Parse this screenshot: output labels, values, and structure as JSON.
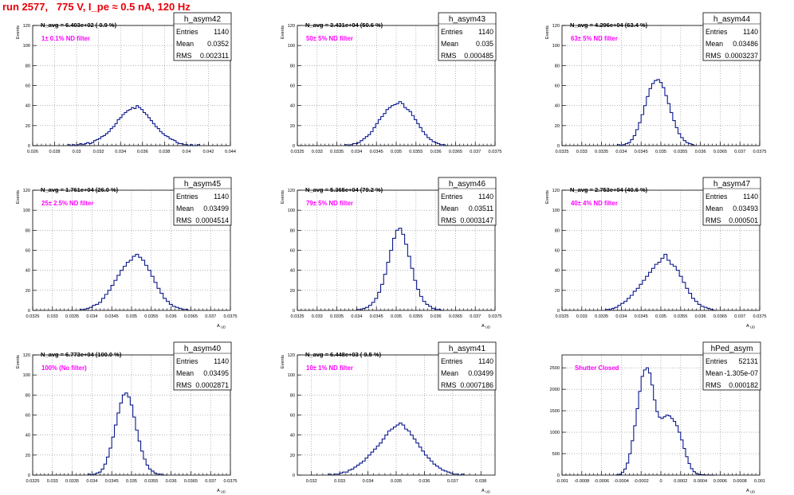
{
  "page_title": "run 2577,   775 V, I_pe ≈ 0.5 nA, 120 Hz",
  "colors": {
    "histogram": "#0b1a8c",
    "note": "#ff00ff",
    "title": "#e8000b",
    "grid": "#888888",
    "frame": "#000000"
  },
  "chart_data": [
    {
      "type": "histogram",
      "name": "h_asym42",
      "navg": "N_avg = 6.403e+02 ( 0.9 %)",
      "note": "1± 0.1% ND filter",
      "stats": {
        "entries_label": "Entries",
        "mean_label": "Mean",
        "rms_label": "RMS",
        "entries": "1140",
        "mean": "0.0352",
        "rms": "0.002311"
      },
      "ylabel": "Events",
      "xlabel": "",
      "xlim": [
        0.026,
        0.044
      ],
      "ylim": [
        0,
        120
      ],
      "xticks": [
        0.026,
        0.028,
        0.03,
        0.032,
        0.034,
        0.036,
        0.038,
        0.04,
        0.042,
        0.044
      ],
      "xtick_labels": [
        "0.026",
        "0.028",
        "0.03",
        "0.032",
        "0.034",
        "0.036",
        "0.038",
        "0.04",
        "0.042",
        "0.044"
      ],
      "yticks": [
        0,
        20,
        40,
        60,
        80,
        100,
        120
      ],
      "xbins": [
        0.0292,
        0.0412
      ],
      "counts": [
        1,
        0,
        1,
        0,
        1,
        2,
        1,
        2,
        3,
        2,
        3,
        5,
        6,
        7,
        9,
        10,
        12,
        14,
        17,
        19,
        22,
        26,
        28,
        31,
        33,
        35,
        36,
        38,
        37,
        40,
        38,
        36,
        33,
        31,
        28,
        25,
        22,
        19,
        17,
        14,
        12,
        10,
        9,
        7,
        6,
        5,
        3,
        2,
        2,
        1,
        1,
        0,
        1,
        0,
        0,
        1
      ]
    },
    {
      "type": "histogram",
      "name": "h_asym43",
      "navg": "N_avg = 3.431e+04 (50.6 %)",
      "note": "50± 5% ND filter",
      "stats": {
        "entries_label": "Entries",
        "mean_label": "Mean",
        "rms_label": "RMS",
        "entries": "1140",
        "mean": "0.035",
        "rms": "0.000485"
      },
      "ylabel": "Events",
      "xlabel": "",
      "xlim": [
        0.0325,
        0.0375
      ],
      "ylim": [
        0,
        120
      ],
      "xticks": [
        0.0325,
        0.033,
        0.0335,
        0.034,
        0.0345,
        0.035,
        0.0355,
        0.036,
        0.0365,
        0.037,
        0.0375
      ],
      "xtick_labels": [
        "0.0325",
        "0.033",
        "0.0335",
        "0.034",
        "0.0345",
        "0.035",
        "0.0355",
        "0.036",
        "0.0365",
        "0.037",
        "0.0375"
      ],
      "yticks": [
        0,
        20,
        40,
        60,
        80,
        100,
        120
      ],
      "xbins": [
        0.0337,
        0.0363
      ],
      "counts": [
        1,
        0,
        1,
        2,
        2,
        3,
        5,
        7,
        9,
        11,
        14,
        18,
        22,
        26,
        29,
        32,
        36,
        38,
        40,
        41,
        42,
        44,
        42,
        38,
        36,
        34,
        30,
        26,
        22,
        18,
        14,
        11,
        8,
        6,
        4,
        3,
        2,
        1,
        1,
        0
      ]
    },
    {
      "type": "histogram",
      "name": "h_asym44",
      "navg": "N_avg = 4.296e+04 (63.4 %)",
      "note": "63± 5% ND filter",
      "stats": {
        "entries_label": "Entries",
        "mean_label": "Mean",
        "rms_label": "RMS",
        "entries": "1140",
        "mean": "0.03486",
        "rms": "0.0003237"
      },
      "ylabel": "Events",
      "xlabel": "",
      "xlim": [
        0.0325,
        0.0375
      ],
      "ylim": [
        0,
        120
      ],
      "xticks": [
        0.0325,
        0.033,
        0.0335,
        0.034,
        0.0345,
        0.035,
        0.0355,
        0.036,
        0.0365,
        0.037,
        0.0375
      ],
      "xtick_labels": [
        "0.0325",
        "0.033",
        "0.0335",
        "0.034",
        "0.0345",
        "0.035",
        "0.0355",
        "0.036",
        "0.0365",
        "0.037",
        "0.0375"
      ],
      "yticks": [
        0,
        20,
        40,
        60,
        80,
        100,
        120
      ],
      "xbins": [
        0.0339,
        0.0359
      ],
      "counts": [
        1,
        0,
        1,
        2,
        3,
        6,
        10,
        16,
        23,
        31,
        40,
        49,
        57,
        62,
        65,
        66,
        63,
        58,
        50,
        42,
        33,
        25,
        18,
        12,
        8,
        5,
        3,
        2,
        1,
        0
      ]
    },
    {
      "type": "histogram",
      "name": "h_asym45",
      "navg": "N_avg = 1.761e+04 (26.0 %)",
      "note": "25± 2.5% ND filter",
      "stats": {
        "entries_label": "Entries",
        "mean_label": "Mean",
        "rms_label": "RMS",
        "entries": "1140",
        "mean": "0.03499",
        "rms": "0.0004514"
      },
      "ylabel": "Events",
      "xlabel": "A_UD",
      "xlim": [
        0.0325,
        0.0375
      ],
      "ylim": [
        0,
        120
      ],
      "xticks": [
        0.0325,
        0.033,
        0.0335,
        0.034,
        0.0345,
        0.035,
        0.0355,
        0.036,
        0.0365,
        0.037,
        0.0375
      ],
      "xtick_labels": [
        "0.0325",
        "0.033",
        "0.0335",
        "0.034",
        "0.0345",
        "0.035",
        "0.0355",
        "0.036",
        "0.0365",
        "0.037",
        "0.0375"
      ],
      "yticks": [
        0,
        20,
        40,
        60,
        80,
        100,
        120
      ],
      "xbins": [
        0.0337,
        0.0365
      ],
      "counts": [
        1,
        1,
        2,
        3,
        5,
        6,
        8,
        12,
        16,
        20,
        25,
        30,
        35,
        40,
        44,
        48,
        50,
        54,
        56,
        53,
        50,
        45,
        40,
        34,
        28,
        22,
        17,
        12,
        9,
        6,
        4,
        3,
        2,
        1,
        1,
        0
      ]
    },
    {
      "type": "histogram",
      "name": "h_asym46",
      "navg": "N_avg = 5.365e+04 (79.2 %)",
      "note": "79± 5% ND filter",
      "stats": {
        "entries_label": "Entries",
        "mean_label": "Mean",
        "rms_label": "RMS",
        "entries": "1140",
        "mean": "0.03511",
        "rms": "0.0003147"
      },
      "ylabel": "Events",
      "xlabel": "A_UD",
      "xlim": [
        0.0325,
        0.0375
      ],
      "ylim": [
        0,
        120
      ],
      "xticks": [
        0.0325,
        0.033,
        0.0335,
        0.034,
        0.0345,
        0.035,
        0.0355,
        0.036,
        0.0365,
        0.037,
        0.0375
      ],
      "xtick_labels": [
        "0.0325",
        "0.033",
        "0.0335",
        "0.034",
        "0.0345",
        "0.035",
        "0.0355",
        "0.036",
        "0.0365",
        "0.037",
        "0.0375"
      ],
      "yticks": [
        0,
        20,
        40,
        60,
        80,
        100,
        120
      ],
      "xbins": [
        0.034,
        0.0362
      ],
      "counts": [
        1,
        1,
        2,
        3,
        5,
        8,
        12,
        18,
        26,
        36,
        48,
        60,
        72,
        80,
        82,
        76,
        66,
        54,
        42,
        30,
        21,
        14,
        9,
        6,
        4,
        2,
        1,
        1,
        0
      ]
    },
    {
      "type": "histogram",
      "name": "h_asym47",
      "navg": "N_avg = 2.753e+04 (40.6 %)",
      "note": "40± 4% ND filter",
      "stats": {
        "entries_label": "Entries",
        "mean_label": "Mean",
        "rms_label": "RMS",
        "entries": "1140",
        "mean": "0.03493",
        "rms": "0.000501"
      },
      "ylabel": "Events",
      "xlabel": "A_UD",
      "xlim": [
        0.0325,
        0.0375
      ],
      "ylim": [
        0,
        120
      ],
      "xticks": [
        0.0325,
        0.033,
        0.0335,
        0.034,
        0.0345,
        0.035,
        0.0355,
        0.036,
        0.0365,
        0.037,
        0.0375
      ],
      "xtick_labels": [
        "0.0325",
        "0.033",
        "0.0335",
        "0.034",
        "0.0345",
        "0.035",
        "0.0355",
        "0.036",
        "0.0365",
        "0.037",
        "0.0375"
      ],
      "yticks": [
        0,
        20,
        40,
        60,
        80,
        100,
        120
      ],
      "xbins": [
        0.0336,
        0.0364
      ],
      "counts": [
        1,
        1,
        2,
        3,
        5,
        7,
        9,
        12,
        15,
        19,
        22,
        26,
        30,
        34,
        38,
        42,
        46,
        48,
        52,
        56,
        50,
        46,
        44,
        40,
        34,
        28,
        22,
        17,
        12,
        9,
        6,
        4,
        3,
        2,
        1,
        0
      ]
    },
    {
      "type": "histogram",
      "name": "h_asym40",
      "navg": "N_avg = 6.773e+04 (100.0 %)",
      "note": "100% (No filter)",
      "stats": {
        "entries_label": "Entries",
        "mean_label": "Mean",
        "rms_label": "RMS",
        "entries": "1140",
        "mean": "0.03495",
        "rms": "0.0002871"
      },
      "ylabel": "Events",
      "xlabel": "A_UD",
      "xlim": [
        0.0325,
        0.0375
      ],
      "ylim": [
        0,
        120
      ],
      "xticks": [
        0.0325,
        0.033,
        0.0335,
        0.034,
        0.0345,
        0.035,
        0.0355,
        0.036,
        0.0365,
        0.037,
        0.0375
      ],
      "xtick_labels": [
        "0.0325",
        "0.033",
        "0.0335",
        "0.034",
        "0.0345",
        "0.035",
        "0.0355",
        "0.036",
        "0.0365",
        "0.037",
        "0.0375"
      ],
      "yticks": [
        0,
        20,
        40,
        60,
        80,
        100,
        120
      ],
      "xbins": [
        0.0339,
        0.0359
      ],
      "counts": [
        1,
        0,
        1,
        2,
        3,
        6,
        11,
        18,
        27,
        38,
        50,
        62,
        72,
        80,
        82,
        78,
        70,
        58,
        45,
        34,
        24,
        16,
        10,
        6,
        4,
        2,
        1,
        1,
        0,
        0
      ]
    },
    {
      "type": "histogram",
      "name": "h_asym41",
      "navg": "N_avg = 6.448e+03 ( 9.5 %)",
      "note": "10± 1% ND filter",
      "stats": {
        "entries_label": "Entries",
        "mean_label": "Mean",
        "rms_label": "RMS",
        "entries": "1140",
        "mean": "0.03499",
        "rms": "0.0007186"
      },
      "ylabel": "Events",
      "xlabel": "A_UD",
      "xlim": [
        0.0315,
        0.0385
      ],
      "ylim": [
        0,
        120
      ],
      "xticks": [
        0.032,
        0.033,
        0.034,
        0.035,
        0.036,
        0.037,
        0.038
      ],
      "xtick_labels": [
        "0.032",
        "0.033",
        "0.034",
        "0.035",
        "0.036",
        "0.037",
        "0.038"
      ],
      "yticks": [
        0,
        20,
        40,
        60,
        80,
        100,
        120
      ],
      "xbins": [
        0.0326,
        0.0374
      ],
      "counts": [
        1,
        0,
        1,
        1,
        2,
        3,
        3,
        5,
        6,
        8,
        10,
        12,
        14,
        17,
        20,
        23,
        26,
        29,
        32,
        36,
        40,
        44,
        46,
        48,
        50,
        52,
        50,
        46,
        44,
        40,
        36,
        32,
        28,
        24,
        20,
        17,
        14,
        11,
        9,
        7,
        5,
        4,
        3,
        2,
        1,
        1,
        0,
        1
      ]
    },
    {
      "type": "histogram",
      "name": "hPed_asym",
      "navg": "",
      "note": "Shutter Closed",
      "stats": {
        "entries_label": "Entries",
        "mean_label": "Mean",
        "rms_label": "RMS",
        "entries": "52131",
        "mean": "-1.305e-07",
        "rms": "0.000182"
      },
      "ylabel": "",
      "xlabel": "A_UD",
      "xlim": [
        -0.001,
        0.001
      ],
      "ylim": [
        0,
        2800
      ],
      "xticks": [
        -0.001,
        -0.0008,
        -0.0006,
        -0.0004,
        -0.0002,
        0,
        0.0002,
        0.0004,
        0.0006,
        0.0008,
        0.001
      ],
      "xtick_labels": [
        "-0.001",
        "-0.0008",
        "-0.0006",
        "-0.0004",
        "-0.0002",
        "0",
        "0.0002",
        "0.0004",
        "0.0006",
        "0.0008",
        "0.001"
      ],
      "yticks": [
        0,
        500,
        1000,
        1500,
        2000,
        2500
      ],
      "xbins": [
        -0.00045,
        0.00055
      ],
      "counts": [
        5,
        20,
        60,
        140,
        280,
        500,
        800,
        1150,
        1550,
        1950,
        2300,
        2450,
        2500,
        2380,
        2100,
        1750,
        1480,
        1350,
        1320,
        1360,
        1400,
        1380,
        1320,
        1250,
        1150,
        1000,
        820,
        620,
        430,
        270,
        150,
        80,
        40,
        20,
        10,
        5,
        2,
        1,
        1,
        0
      ]
    }
  ]
}
